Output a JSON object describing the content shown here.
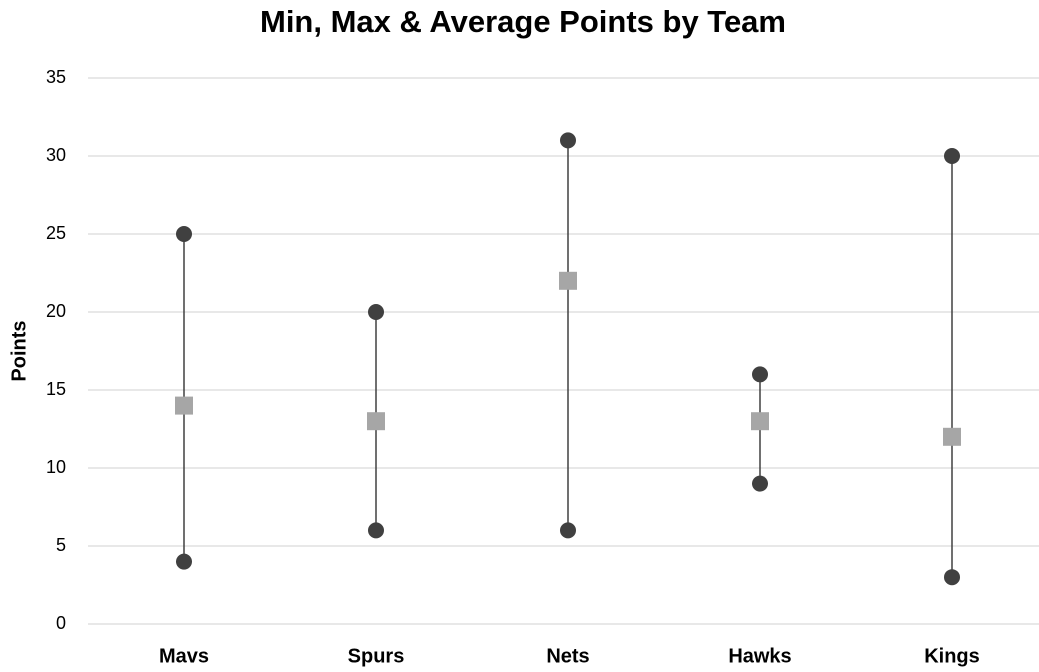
{
  "chart_data": {
    "type": "dot",
    "title": "Min, Max & Average Points by Team",
    "y_label": "Points",
    "categories": [
      "Mavs",
      "Spurs",
      "Nets",
      "Hawks",
      "Kings"
    ],
    "series": [
      {
        "color": "#404040",
        "marker": "circle",
        "values": [
          4,
          6,
          6,
          9,
          3
        ]
      },
      {
        "color": "#404040",
        "marker": "circle",
        "values": [
          25,
          20,
          31,
          16,
          30
        ]
      },
      {
        "color": "#a6a6a6",
        "marker": "square",
        "values": [
          14,
          13,
          22,
          13,
          12
        ]
      }
    ],
    "range_line_color": "#404040",
    "ylim": [
      0,
      35
    ],
    "yticks": [
      0,
      5,
      10,
      15,
      20,
      25,
      30,
      35
    ],
    "grid": true
  }
}
